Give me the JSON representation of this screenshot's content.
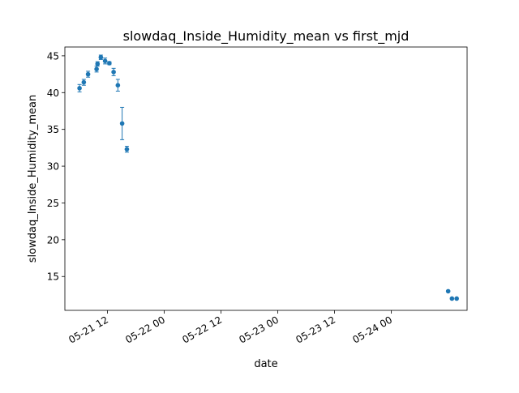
{
  "chart_data": {
    "type": "scatter",
    "title": "slowdaq_Inside_Humidity_mean vs first_mjd",
    "xlabel": "date",
    "ylabel": "slowdaq_Inside_Humidity_mean",
    "x_unit": "hours since 05-21 00:00",
    "xlim": [
      3.0,
      88.0
    ],
    "ylim": [
      10.4,
      46.2
    ],
    "xticks": [
      {
        "value": 12,
        "label": "05-21 12"
      },
      {
        "value": 24,
        "label": "05-22 00"
      },
      {
        "value": 36,
        "label": "05-22 12"
      },
      {
        "value": 48,
        "label": "05-23 00"
      },
      {
        "value": 60,
        "label": "05-23 12"
      },
      {
        "value": 72,
        "label": "05-24 00"
      }
    ],
    "yticks": [
      15,
      20,
      25,
      30,
      35,
      40,
      45
    ],
    "ytick_labels": [
      "15",
      "20",
      "25",
      "30",
      "35",
      "40",
      "45"
    ],
    "series": [
      {
        "name": "slowdaq_Inside_Humidity_mean",
        "color": "#1f77b4",
        "points": [
          {
            "x": 6.1,
            "y": 40.6,
            "err": 0.5
          },
          {
            "x": 7.0,
            "y": 41.4,
            "err": 0.4
          },
          {
            "x": 7.9,
            "y": 42.5,
            "err": 0.4
          },
          {
            "x": 9.7,
            "y": 43.2,
            "err": 0.4
          },
          {
            "x": 9.9,
            "y": 43.9,
            "err": 0.3
          },
          {
            "x": 10.6,
            "y": 44.8,
            "err": 0.3
          },
          {
            "x": 11.5,
            "y": 44.3,
            "err": 0.4
          },
          {
            "x": 12.4,
            "y": 44.0,
            "err": 0.2
          },
          {
            "x": 13.3,
            "y": 42.8,
            "err": 0.5
          },
          {
            "x": 14.2,
            "y": 41.0,
            "err": 0.8
          },
          {
            "x": 15.1,
            "y": 35.8,
            "err": 2.2
          },
          {
            "x": 16.1,
            "y": 32.3,
            "err": 0.4
          },
          {
            "x": 84.0,
            "y": 13.0,
            "err": 0.0
          },
          {
            "x": 84.8,
            "y": 12.0,
            "err": 0.0
          },
          {
            "x": 85.8,
            "y": 12.0,
            "err": 0.0
          }
        ]
      }
    ]
  }
}
